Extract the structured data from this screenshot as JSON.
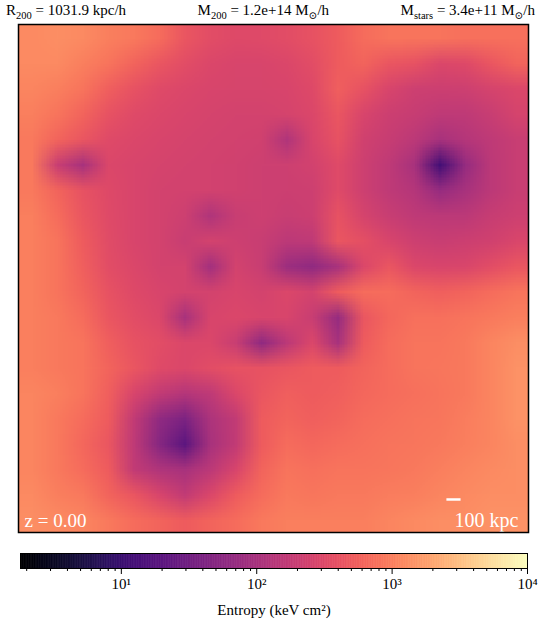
{
  "chart_data": {
    "type": "heatmap",
    "title": [
      [
        {
          "text": "R"
        },
        {
          "text": "200",
          "sub": true
        },
        {
          "text": " = 1031.9 kpc/h"
        }
      ],
      [
        {
          "text": "M"
        },
        {
          "text": "200",
          "sub": true
        },
        {
          "text": " = 1.2e+14 M"
        },
        {
          "text": "⊙",
          "sub": true
        },
        {
          "text": "/h"
        }
      ],
      [
        {
          "text": "M"
        },
        {
          "text": "stars",
          "sub": true
        },
        {
          "text": " = 3.4e+11 M"
        },
        {
          "text": "⊙",
          "sub": true
        },
        {
          "text": "/h"
        }
      ]
    ],
    "annotations": [
      "z = 0.00"
    ],
    "scale_bar": {
      "length": 100,
      "label": "100 kpc"
    },
    "xlim": [
      0,
      3600
    ],
    "ylim": [
      0,
      3600
    ],
    "tick_labels": false,
    "log": true,
    "color": "magma",
    "cells": [
      [
        1200,
        1300,
        1200,
        1000,
        900,
        700,
        450,
        350,
        320,
        330,
        350,
        400,
        500,
        700,
        800,
        800,
        800,
        750,
        750,
        750
      ],
      [
        1200,
        1200,
        1000,
        800,
        600,
        450,
        350,
        300,
        280,
        280,
        300,
        350,
        500,
        600,
        450,
        400,
        300,
        320,
        450,
        600
      ],
      [
        1100,
        1000,
        800,
        550,
        400,
        330,
        300,
        280,
        270,
        270,
        280,
        320,
        550,
        400,
        280,
        220,
        210,
        220,
        260,
        300
      ],
      [
        1000,
        800,
        600,
        400,
        330,
        300,
        280,
        260,
        250,
        250,
        260,
        300,
        450,
        280,
        210,
        190,
        160,
        160,
        200,
        260
      ],
      [
        900,
        600,
        450,
        330,
        300,
        280,
        260,
        250,
        240,
        230,
        120,
        280,
        400,
        230,
        190,
        150,
        100,
        130,
        160,
        200
      ],
      [
        900,
        200,
        100,
        300,
        280,
        260,
        250,
        240,
        230,
        220,
        220,
        240,
        330,
        220,
        160,
        100,
        12,
        70,
        150,
        200
      ],
      [
        900,
        600,
        400,
        320,
        280,
        250,
        240,
        240,
        230,
        220,
        210,
        220,
        330,
        220,
        160,
        130,
        70,
        100,
        150,
        200
      ],
      [
        1000,
        700,
        450,
        330,
        280,
        250,
        220,
        120,
        200,
        220,
        200,
        210,
        400,
        260,
        200,
        160,
        150,
        150,
        190,
        220
      ],
      [
        1000,
        800,
        500,
        340,
        280,
        250,
        200,
        250,
        220,
        200,
        150,
        160,
        450,
        380,
        280,
        220,
        200,
        210,
        230,
        290
      ],
      [
        1000,
        800,
        550,
        350,
        300,
        250,
        250,
        90,
        250,
        200,
        80,
        60,
        100,
        300,
        450,
        300,
        280,
        290,
        350,
        450
      ],
      [
        1000,
        800,
        600,
        400,
        320,
        280,
        250,
        250,
        280,
        250,
        300,
        250,
        500,
        700,
        700,
        600,
        550,
        600,
        700,
        800
      ],
      [
        1000,
        900,
        700,
        450,
        350,
        300,
        100,
        280,
        300,
        280,
        280,
        200,
        70,
        450,
        650,
        750,
        750,
        800,
        900,
        1000
      ],
      [
        1000,
        900,
        800,
        550,
        400,
        350,
        300,
        300,
        200,
        60,
        150,
        300,
        100,
        500,
        700,
        800,
        800,
        900,
        1100,
        1300
      ],
      [
        1000,
        900,
        800,
        600,
        450,
        330,
        300,
        350,
        400,
        400,
        450,
        500,
        500,
        600,
        700,
        800,
        850,
        900,
        1100,
        1400
      ],
      [
        1100,
        1000,
        800,
        550,
        280,
        170,
        130,
        160,
        300,
        450,
        550,
        500,
        550,
        650,
        700,
        750,
        800,
        900,
        1100,
        1400
      ],
      [
        1100,
        900,
        700,
        500,
        170,
        60,
        40,
        110,
        170,
        500,
        600,
        550,
        600,
        700,
        750,
        800,
        850,
        950,
        1100,
        1400
      ],
      [
        1100,
        900,
        650,
        450,
        160,
        50,
        20,
        100,
        170,
        500,
        700,
        650,
        700,
        750,
        800,
        850,
        900,
        1000,
        1100,
        1300
      ],
      [
        1100,
        900,
        700,
        500,
        170,
        120,
        100,
        150,
        280,
        600,
        800,
        750,
        800,
        800,
        850,
        900,
        1000,
        1100,
        1200,
        1300
      ],
      [
        1200,
        1000,
        900,
        600,
        450,
        280,
        170,
        300,
        500,
        700,
        900,
        850,
        900,
        900,
        950,
        1000,
        1100,
        1200,
        1300,
        1300
      ],
      [
        1300,
        1200,
        1100,
        900,
        700,
        600,
        500,
        600,
        700,
        900,
        1000,
        1000,
        1000,
        1000,
        1100,
        1200,
        1300,
        1300,
        1400,
        1400
      ]
    ],
    "colorbar": {
      "label": "Entropy (keV cm²)",
      "range": [
        1.8,
        10000
      ],
      "ticks": [
        {
          "value": 10,
          "label": "10¹"
        },
        {
          "value": 100,
          "label": "10²"
        },
        {
          "value": 1000,
          "label": "10³"
        },
        {
          "value": 10000,
          "label": "10⁴"
        }
      ],
      "minor_ticks": [
        2,
        3,
        4,
        5,
        6,
        7,
        8,
        9,
        20,
        30,
        40,
        50,
        60,
        70,
        80,
        90,
        200,
        300,
        400,
        500,
        600,
        700,
        800,
        900,
        2000,
        3000,
        4000,
        5000,
        6000,
        7000,
        8000,
        9000
      ]
    }
  }
}
